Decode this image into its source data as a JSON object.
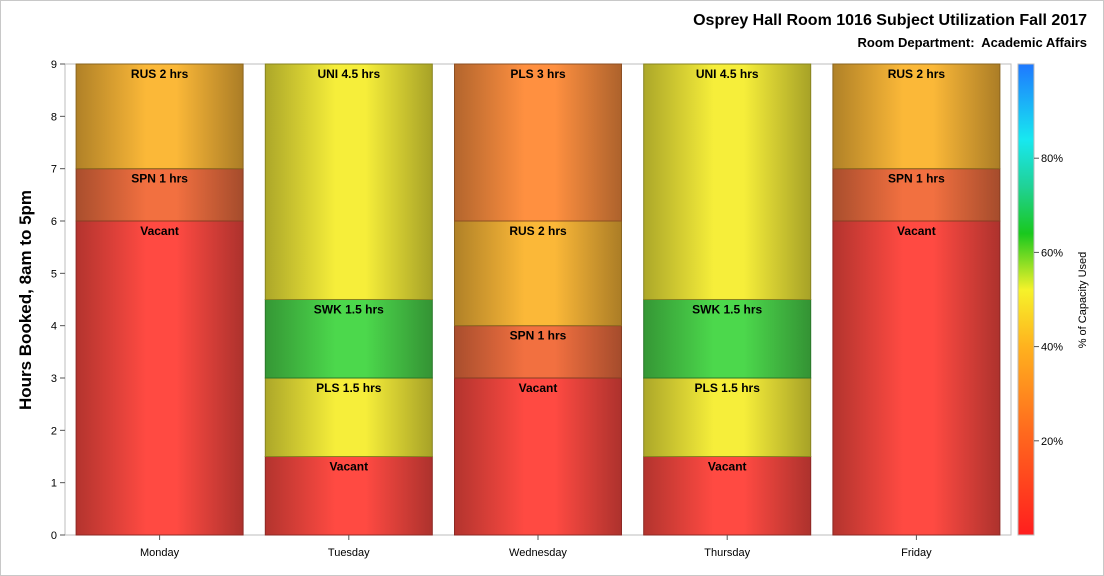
{
  "chart_data": {
    "type": "bar",
    "stacked": true,
    "title": "Osprey Hall Room 1016 Subject Utilization Fall 2017",
    "subtitle": "Room Department:  Academic Affairs",
    "ylabel": "Hours Booked, 8am to 5pm",
    "colorbar_label": "% of Capacity Used",
    "ylim": [
      0,
      9
    ],
    "yticks": [
      0,
      1,
      2,
      3,
      4,
      5,
      6,
      7,
      8,
      9
    ],
    "colorbar_ticks": [
      "20%",
      "40%",
      "60%",
      "80%"
    ],
    "colorbar_tick_values": [
      20,
      40,
      60,
      80
    ],
    "colorbar_range": [
      0,
      100
    ],
    "grid": false,
    "categories": [
      "Monday",
      "Tuesday",
      "Wednesday",
      "Thursday",
      "Friday"
    ],
    "stacks": [
      {
        "day": "Monday",
        "segments": [
          {
            "label": "Vacant",
            "hours": 6,
            "pct": 0
          },
          {
            "label": "SPN 1 hrs",
            "hours": 1,
            "pct": 30
          },
          {
            "label": "RUS 2 hrs",
            "hours": 2,
            "pct": 40
          }
        ]
      },
      {
        "day": "Tuesday",
        "segments": [
          {
            "label": "Vacant",
            "hours": 1.5,
            "pct": 0
          },
          {
            "label": "PLS 1.5 hrs",
            "hours": 1.5,
            "pct": 50
          },
          {
            "label": "SWK 1.5 hrs",
            "hours": 1.5,
            "pct": 65
          },
          {
            "label": "UNI 4.5 hrs",
            "hours": 4.5,
            "pct": 50
          }
        ]
      },
      {
        "day": "Wednesday",
        "segments": [
          {
            "label": "Vacant",
            "hours": 3,
            "pct": 0
          },
          {
            "label": "SPN 1 hrs",
            "hours": 1,
            "pct": 30
          },
          {
            "label": "RUS 2 hrs",
            "hours": 2,
            "pct": 40
          },
          {
            "label": "PLS 3 hrs",
            "hours": 3,
            "pct": 35
          }
        ]
      },
      {
        "day": "Thursday",
        "segments": [
          {
            "label": "Vacant",
            "hours": 1.5,
            "pct": 0
          },
          {
            "label": "PLS 1.5 hrs",
            "hours": 1.5,
            "pct": 50
          },
          {
            "label": "SWK 1.5 hrs",
            "hours": 1.5,
            "pct": 65
          },
          {
            "label": "UNI 4.5 hrs",
            "hours": 4.5,
            "pct": 50
          }
        ]
      },
      {
        "day": "Friday",
        "segments": [
          {
            "label": "Vacant",
            "hours": 6,
            "pct": 0
          },
          {
            "label": "SPN 1 hrs",
            "hours": 1,
            "pct": 30
          },
          {
            "label": "RUS 2 hrs",
            "hours": 2,
            "pct": 40
          }
        ]
      }
    ]
  },
  "colors": {
    "vacant": "#ff4a42",
    "spn": "#f27040",
    "rus": "#fbb838",
    "pls_wed": "#ff9040",
    "uni_pls": "#f6ee3a",
    "swk": "#4cd84c"
  }
}
